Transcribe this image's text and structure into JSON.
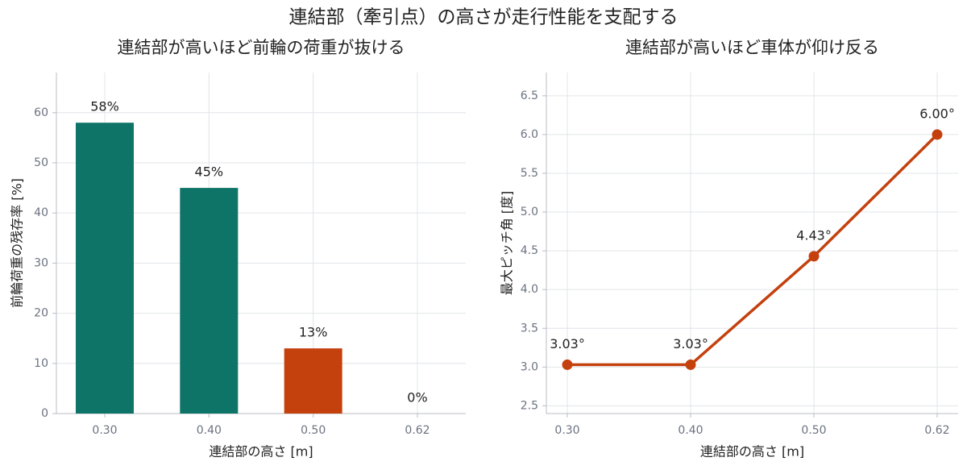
{
  "title": "連結部（牽引点）の高さが走行性能を支配する",
  "chart_data": [
    {
      "type": "bar",
      "title": "連結部が高いほど前輪の荷重が抜ける",
      "xlabel": "連結部の高さ [m]",
      "ylabel": "前輪荷重の残存率 [%]",
      "categories": [
        "0.30",
        "0.40",
        "0.50",
        "0.62"
      ],
      "values": [
        58,
        45,
        13,
        0
      ],
      "value_labels": [
        "58%",
        "45%",
        "13%",
        "0%"
      ],
      "colors": [
        "#0e7468",
        "#0e7468",
        "#c4410e",
        "#c4410e"
      ],
      "ylim": [
        0,
        68
      ],
      "yticks": [
        0,
        10,
        20,
        30,
        40,
        50,
        60
      ],
      "grid": true
    },
    {
      "type": "line",
      "title": "連結部が高いほど車体が仰け反る",
      "xlabel": "連結部の高さ [m]",
      "ylabel": "最大ピッチ角 [度]",
      "categories": [
        "0.30",
        "0.40",
        "0.50",
        "0.62"
      ],
      "values": [
        3.03,
        3.03,
        4.43,
        6.0
      ],
      "value_labels": [
        "3.03°",
        "3.03°",
        "4.43°",
        "6.00°"
      ],
      "color": "#c4410e",
      "ylim": [
        2.4,
        6.8
      ],
      "yticks": [
        2.5,
        {
          "value": 3.0,
          "label": "3.0"
        },
        3.5,
        {
          "value": 4.0,
          "label": "4.0"
        },
        4.5,
        {
          "value": 5.0,
          "label": "5.0"
        },
        5.5,
        {
          "value": 6.0,
          "label": "6.0"
        },
        6.5
      ],
      "grid": true
    }
  ]
}
